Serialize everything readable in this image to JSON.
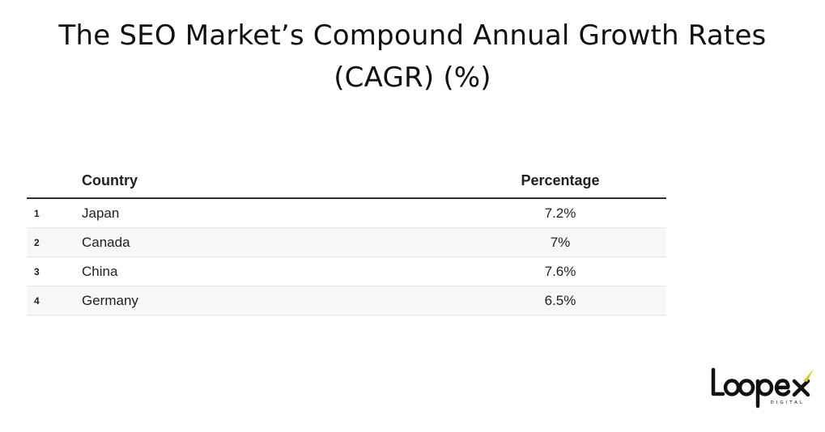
{
  "title_line1": "The SEO Market’s Compound Annual Growth Rates",
  "title_line2": "(CAGR) (%)",
  "table": {
    "headers": [
      "Country",
      "Percentage"
    ],
    "rows": [
      {
        "index": "1",
        "country": "Japan",
        "percentage": "7.2%"
      },
      {
        "index": "2",
        "country": "Canada",
        "percentage": "7%"
      },
      {
        "index": "3",
        "country": "China",
        "percentage": "7.6%"
      },
      {
        "index": "4",
        "country": "Germany",
        "percentage": "6.5%"
      }
    ]
  },
  "logo": {
    "name": "Loopex",
    "tagline": "DIGITAL"
  },
  "chart_data": {
    "type": "table",
    "title": "The SEO Market’s Compound Annual Growth Rates (CAGR) (%)",
    "columns": [
      "Country",
      "Percentage"
    ],
    "categories": [
      "Japan",
      "Canada",
      "China",
      "Germany"
    ],
    "values": [
      7.2,
      7,
      7.6,
      6.5
    ]
  }
}
